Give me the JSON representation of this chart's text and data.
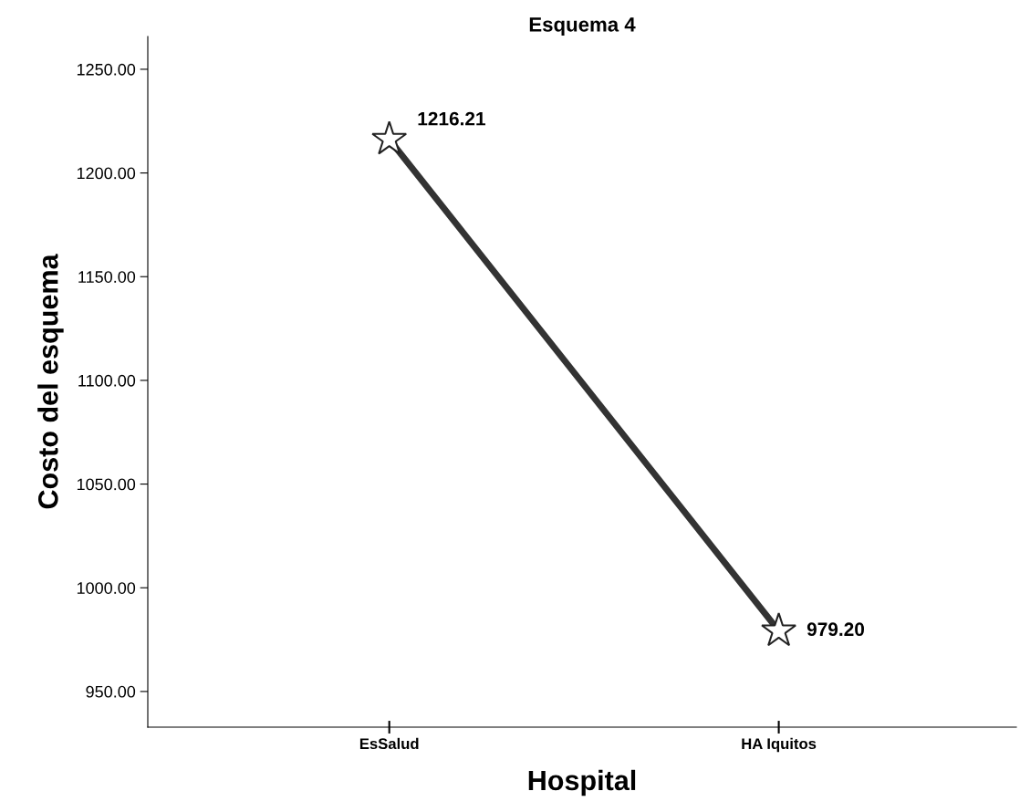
{
  "chart_data": {
    "type": "line",
    "title": "Esquema 4",
    "xlabel": "Hospital",
    "ylabel": "Costo del esquema",
    "categories": [
      "EsSalud",
      "HA Iquitos"
    ],
    "series": [
      {
        "color": "#333333",
        "values": [
          1216.21,
          979.2
        ]
      }
    ],
    "value_labels": [
      "1216.21",
      "979.20"
    ],
    "ylim": [
      932.8,
      1265.8
    ],
    "yticks": [
      {
        "value": 950,
        "label": "950.00"
      },
      {
        "value": 1000,
        "label": "1000.00"
      },
      {
        "value": 1050,
        "label": "1050.00"
      },
      {
        "value": 1100,
        "label": "1100.00"
      },
      {
        "value": 1150,
        "label": "1150.00"
      },
      {
        "value": 1200,
        "label": "1200.00"
      },
      {
        "value": 1250,
        "label": "1250.00"
      }
    ],
    "marker": "star",
    "line_style": "solid",
    "grid": false,
    "legend": false
  }
}
